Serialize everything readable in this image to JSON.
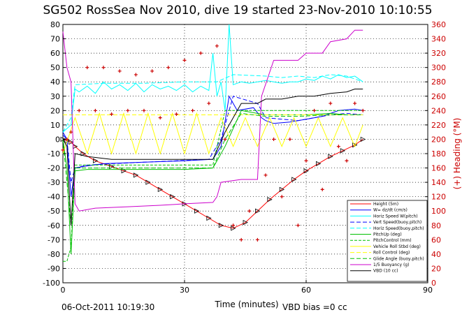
{
  "title": "SG502 RossSea Nov 2010, dive 19 started 23-Nov-2010 10:10:55",
  "footer_date": "06-Oct-2011 10:19:30",
  "footer_vbd": "VBD bias =0 cc",
  "colors": {
    "height": "#ff0000",
    "w": "#0000ff",
    "horz_w": "#00ffff",
    "vert_buoy": "#0000ff",
    "horz_buoy": "#00ffff",
    "pitch_up": "#00c000",
    "pitch_ctl": "#00c000",
    "vehicle_roll": "#ffff00",
    "roll_ctl": "#ffff00",
    "glide": "#00c000",
    "buoyancy": "#cc00cc",
    "vbd": "#000000",
    "heading": "#cc0000",
    "left_axis": "#000000",
    "right_axis": "#cc0000"
  },
  "chart_data": {
    "type": "line",
    "title": "SG502 RossSea Nov 2010, dive 19 started 23-Nov-2010 10:10:55",
    "xlabel": "Time (minutes)",
    "ylabel_right": "(+) Heading (°M)",
    "xlim": [
      0,
      90
    ],
    "ylim_left": [
      -100,
      80
    ],
    "ylim_right": [
      0,
      360
    ],
    "x_ticks": [
      "0",
      "30",
      "60",
      "90"
    ],
    "y_ticks_left": [
      "80",
      "70",
      "60",
      "50",
      "40",
      "30",
      "20",
      "10",
      "0",
      "-10",
      "-20",
      "-30",
      "-40",
      "-50",
      "-60",
      "-70",
      "-80",
      "-90",
      "-100"
    ],
    "y_ticks_right": [
      "360",
      "340",
      "320",
      "300",
      "280",
      "260",
      "240",
      "220",
      "200",
      "180",
      "160",
      "140",
      "120",
      "100",
      "80",
      "60",
      "40",
      "20",
      "0"
    ],
    "grid": true,
    "legend_position": "bottom-right",
    "series": [
      {
        "name": "Height (5m)",
        "key": "height",
        "axis": "left",
        "x": [
          0,
          1,
          2,
          3,
          5,
          8,
          12,
          15,
          18,
          21,
          24,
          27,
          30,
          33,
          36,
          39,
          42,
          45,
          48,
          51,
          54,
          57,
          60,
          63,
          66,
          69,
          72,
          74
        ],
        "y": [
          0,
          -1,
          -2,
          -5,
          -10,
          -15,
          -19,
          -22,
          -25,
          -30,
          -35,
          -40,
          -45,
          -50,
          -55,
          -60,
          -62,
          -58,
          -50,
          -42,
          -35,
          -28,
          -22,
          -17,
          -12,
          -8,
          -4,
          0
        ]
      },
      {
        "name": "W= dz/dt (cm/s)",
        "key": "w",
        "axis": "left",
        "x": [
          0,
          1,
          2,
          3,
          5,
          10,
          20,
          30,
          37,
          39,
          41,
          43,
          47,
          49,
          50,
          52,
          56,
          60,
          64,
          68,
          72,
          74
        ],
        "y": [
          5,
          0,
          -40,
          -20,
          -19,
          -17,
          -16,
          -15,
          -14,
          -5,
          30,
          20,
          22,
          15,
          13,
          11,
          12,
          14,
          16,
          20,
          21,
          20
        ]
      },
      {
        "name": "Horiz Speed W(pitch)",
        "key": "horz_w",
        "axis": "left",
        "x": [
          0,
          2,
          3,
          4,
          6,
          8,
          10,
          12,
          14,
          16,
          18,
          20,
          22,
          24,
          26,
          28,
          30,
          32,
          34,
          36,
          37,
          38,
          39,
          40,
          41,
          42,
          44,
          46,
          48,
          50,
          52,
          54,
          56,
          58,
          60,
          62,
          64,
          66,
          68,
          70,
          72,
          74
        ],
        "y": [
          5,
          10,
          35,
          33,
          37,
          32,
          40,
          35,
          38,
          34,
          39,
          33,
          38,
          35,
          37,
          34,
          38,
          33,
          37,
          34,
          60,
          30,
          40,
          20,
          80,
          38,
          40,
          39,
          40,
          41,
          40,
          39,
          40,
          40,
          42,
          41,
          44,
          42,
          45,
          43,
          44,
          40
        ]
      },
      {
        "name": "Vert Speed(buoy,pitch)",
        "key": "vert_buoy",
        "axis": "left",
        "x": [
          0,
          1,
          2,
          3,
          6,
          12,
          20,
          28,
          36,
          39,
          42,
          48,
          50,
          54,
          58,
          62,
          66,
          70,
          74
        ],
        "y": [
          3,
          0,
          -30,
          -20,
          -18,
          -17,
          -16,
          -15,
          -14,
          0,
          30,
          25,
          15,
          14,
          13,
          15,
          17,
          18,
          17
        ]
      },
      {
        "name": "Horiz Speed(buoy,pitch)",
        "key": "horz_buoy",
        "axis": "left",
        "x": [
          0,
          2,
          3,
          10,
          20,
          30,
          38,
          42,
          50,
          54,
          58,
          62,
          66,
          70,
          74
        ],
        "y": [
          5,
          15,
          38,
          39,
          39,
          40,
          40,
          45,
          44,
          43,
          44,
          43,
          45,
          44,
          40
        ]
      },
      {
        "name": "PitchUp (deg)",
        "key": "pitch_up",
        "axis": "left",
        "x": [
          0,
          1,
          2,
          3,
          6,
          12,
          20,
          30,
          37,
          40,
          44,
          50,
          55,
          60,
          66,
          70,
          74
        ],
        "y": [
          0,
          -20,
          -80,
          -22,
          -21,
          -21,
          -21,
          -21,
          -20,
          -5,
          20,
          17,
          17,
          17,
          18,
          17,
          17
        ]
      },
      {
        "name": "PitchControl (mm)",
        "key": "pitch_ctl",
        "axis": "left",
        "x": [
          0,
          1,
          2,
          3,
          6,
          12,
          20,
          30,
          37,
          40,
          44,
          50,
          58,
          66,
          74
        ],
        "y": [
          -85,
          -85,
          -75,
          -18,
          -18,
          -18,
          -18,
          -18,
          -18,
          20,
          20,
          20,
          20,
          20,
          20
        ]
      },
      {
        "name": "Vehicle Roll Stbd (deg)",
        "key": "vehicle_roll",
        "axis": "left",
        "x": [
          0,
          3,
          6,
          9,
          12,
          15,
          18,
          21,
          24,
          27,
          30,
          33,
          36,
          39,
          42,
          45,
          48,
          51,
          54,
          57,
          60,
          63,
          66,
          69,
          72,
          74
        ],
        "y": [
          -10,
          15,
          -10,
          18,
          -10,
          18,
          -10,
          18,
          -10,
          18,
          -10,
          18,
          -10,
          15,
          -5,
          15,
          -5,
          15,
          -5,
          15,
          -5,
          15,
          -5,
          15,
          -5,
          10
        ]
      },
      {
        "name": "Roll Control (deg)",
        "key": "roll_ctl",
        "axis": "left",
        "x": [
          0,
          10,
          20,
          30,
          40,
          50,
          60,
          70,
          74
        ],
        "y": [
          17,
          17,
          17,
          17,
          17,
          17,
          17,
          17,
          17
        ]
      },
      {
        "name": "Glide Angle (buoy,pitch)",
        "key": "glide",
        "axis": "left",
        "x": [
          0,
          2,
          3,
          10,
          20,
          30,
          37,
          40,
          44,
          50,
          58,
          66,
          74
        ],
        "y": [
          0,
          -60,
          -20,
          -20,
          -20,
          -20,
          -20,
          0,
          18,
          16,
          16,
          17,
          17
        ]
      },
      {
        "name": "1/5 Buoyancy (g)",
        "key": "buoyancy",
        "axis": "left",
        "x": [
          0,
          1,
          2,
          3,
          4,
          8,
          16,
          24,
          30,
          37,
          38,
          39,
          44,
          48,
          49,
          52,
          58,
          60,
          64,
          66,
          70,
          72,
          74
        ],
        "y": [
          75,
          50,
          40,
          -45,
          -50,
          -48,
          -47,
          -46,
          -45,
          -44,
          -40,
          -30,
          -28,
          -28,
          30,
          55,
          55,
          60,
          60,
          68,
          70,
          76,
          76
        ]
      },
      {
        "name": "VBD (10 cc)",
        "key": "vbd",
        "axis": "left",
        "x": [
          0,
          1,
          2,
          3,
          6,
          12,
          20,
          30,
          37,
          40,
          44,
          48,
          50,
          54,
          58,
          62,
          66,
          70,
          72,
          74
        ],
        "y": [
          0,
          -5,
          -60,
          -10,
          -12,
          -14,
          -14,
          -14,
          -14,
          5,
          25,
          25,
          28,
          28,
          30,
          30,
          32,
          33,
          35,
          35
        ]
      },
      {
        "name": "Heading",
        "key": "heading",
        "axis": "right",
        "x": [
          0,
          1,
          2,
          4,
          6,
          8,
          10,
          12,
          14,
          16,
          18,
          20,
          22,
          24,
          26,
          28,
          30,
          32,
          34,
          36,
          38,
          40,
          42,
          44,
          46,
          48,
          50,
          52,
          54,
          56,
          58,
          60,
          62,
          64,
          66,
          68,
          70,
          72,
          74
        ],
        "y": [
          185,
          200,
          210,
          240,
          300,
          240,
          300,
          235,
          295,
          240,
          290,
          240,
          295,
          230,
          300,
          235,
          310,
          240,
          320,
          250,
          330,
          200,
          80,
          60,
          100,
          60,
          150,
          200,
          120,
          200,
          80,
          170,
          240,
          130,
          250,
          190,
          170,
          250,
          240
        ]
      }
    ]
  }
}
